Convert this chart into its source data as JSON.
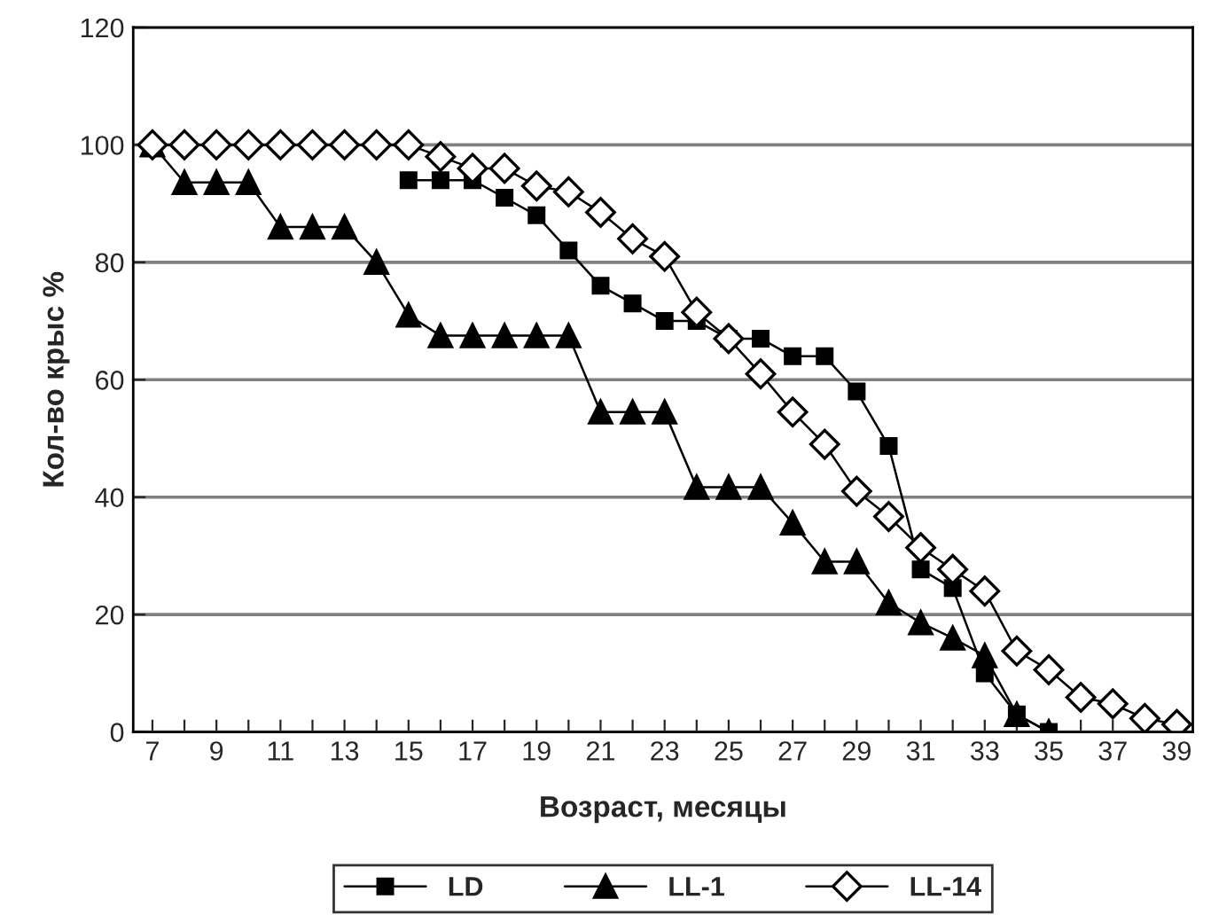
{
  "chart_data": {
    "type": "line",
    "xlabel": "Возраст, месяцы",
    "ylabel": "Кол-во крыс %",
    "x": [
      7,
      8,
      9,
      10,
      11,
      12,
      13,
      14,
      15,
      16,
      17,
      18,
      19,
      20,
      21,
      22,
      23,
      24,
      25,
      26,
      27,
      28,
      29,
      30,
      31,
      32,
      33,
      34,
      35,
      36,
      37,
      38,
      39
    ],
    "xlim": [
      6.4,
      39.5
    ],
    "xticks": [
      7,
      {
        "value": 8,
        "label": null
      },
      9,
      {
        "value": 10,
        "label": null
      },
      11,
      {
        "value": 12,
        "label": null
      },
      13,
      {
        "value": 14,
        "label": null
      },
      15,
      {
        "value": 16,
        "label": null
      },
      17,
      {
        "value": 18,
        "label": null
      },
      19,
      {
        "value": 20,
        "label": null
      },
      21,
      {
        "value": 22,
        "label": null
      },
      23,
      {
        "value": 24,
        "label": null
      },
      25,
      {
        "value": 26,
        "label": null
      },
      27,
      {
        "value": 28,
        "label": null
      },
      29,
      {
        "value": 30,
        "label": null
      },
      31,
      {
        "value": 32,
        "label": null
      },
      33,
      {
        "value": 34,
        "label": null
      },
      35,
      {
        "value": 36,
        "label": null
      },
      37,
      {
        "value": 38,
        "label": null
      },
      39
    ],
    "ylim": [
      0,
      120
    ],
    "yticks": [
      0,
      20,
      40,
      60,
      80,
      100,
      120
    ],
    "grid": "y",
    "legend": "bottom",
    "series": [
      {
        "name": "LD",
        "color": "#000000",
        "marker": "square",
        "values": [
          null,
          null,
          null,
          null,
          null,
          null,
          null,
          null,
          94,
          94,
          94,
          91,
          88,
          82,
          76,
          73,
          70,
          70,
          67,
          67,
          64,
          64,
          58,
          48.7,
          27.7,
          24.5,
          10,
          3,
          0,
          null,
          null,
          null,
          null
        ]
      },
      {
        "name": "LL-1",
        "color": "#000000",
        "marker": "triangle",
        "values": [
          100,
          93.6,
          93.6,
          93.6,
          86,
          86,
          86,
          80,
          71,
          67.5,
          67.5,
          67.5,
          67.5,
          67.5,
          54.5,
          54.5,
          54.5,
          41.7,
          41.7,
          41.7,
          35.6,
          29,
          29,
          22,
          18.6,
          16,
          13,
          3,
          0,
          null,
          null,
          null,
          null
        ]
      },
      {
        "name": "LL-14",
        "color": "#000000",
        "marker": "diamond",
        "values": [
          100,
          100,
          100,
          100,
          100,
          100,
          100,
          100,
          100,
          98,
          96,
          96,
          93,
          92,
          88.5,
          84,
          81,
          71.5,
          67,
          61,
          54.5,
          49,
          41,
          36.7,
          31.4,
          27.7,
          24,
          13.8,
          10.6,
          5.9,
          4.8,
          2.3,
          1.3
        ]
      }
    ]
  }
}
